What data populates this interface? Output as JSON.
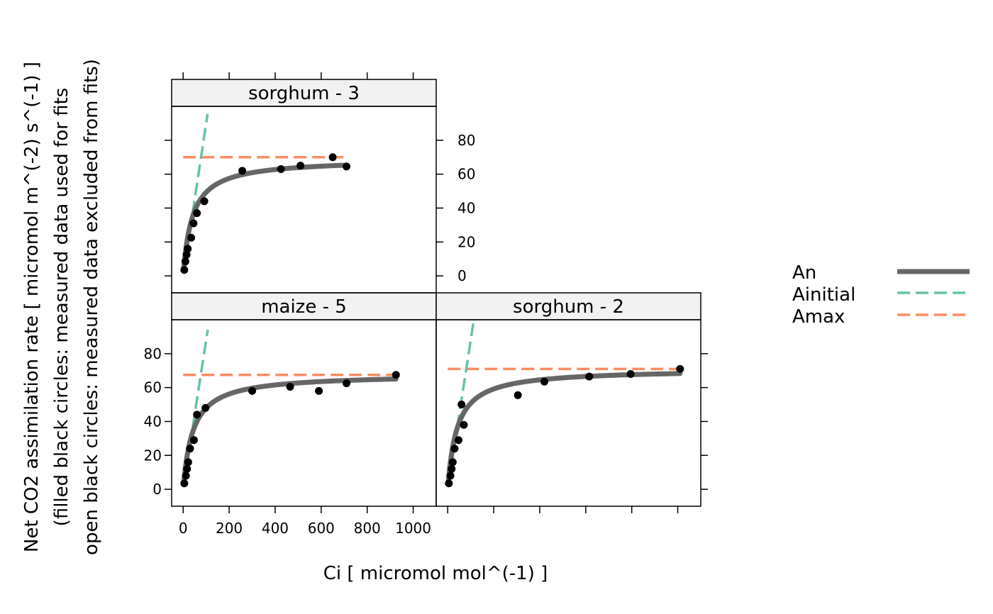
{
  "chart_data": {
    "type": "scatter",
    "xlabel": "Ci [ micromol mol^(-1) ]",
    "ylabel_lines": [
      "Net CO2 assimilation rate [ micromol m^(-2) s^(-1) ]",
      "(filled black circles: measured data used for fits",
      "open black circles: measured data excluded from fits)"
    ],
    "xlim": [
      -50,
      1100
    ],
    "ylim": [
      -10,
      100
    ],
    "xticks": [
      0,
      200,
      400,
      600,
      800,
      1000
    ],
    "yticks": [
      0,
      20,
      40,
      60,
      80
    ],
    "legend": {
      "placement": "right",
      "entries": [
        {
          "label": "An",
          "color": "#666666",
          "style": "solid"
        },
        {
          "label": "Ainitial",
          "color": "#66c2a5",
          "style": "dashed"
        },
        {
          "label": "Amax",
          "color": "#fc8d62",
          "style": "dashed"
        }
      ]
    },
    "strip_fill": "#f2f2f2",
    "point_color": "#000000",
    "panels": [
      {
        "id": "maize-5",
        "title": "maize - 5",
        "row": 0,
        "col": 0,
        "points": [
          [
            5,
            3.5
          ],
          [
            12,
            8
          ],
          [
            17,
            12
          ],
          [
            22,
            16
          ],
          [
            30,
            24
          ],
          [
            47,
            29
          ],
          [
            60,
            44
          ],
          [
            97,
            48
          ],
          [
            300,
            58
          ],
          [
            465,
            60.5
          ],
          [
            590,
            58
          ],
          [
            710,
            62.5
          ],
          [
            925,
            67.5
          ]
        ],
        "An": {
          "amax": 68,
          "ci50": 42,
          "xmax": 925
        },
        "Ainitial": {
          "slope": 0.88,
          "x0": 5,
          "x1": 107
        },
        "Amax": {
          "value": 67.5,
          "x0": 0,
          "x1": 930
        }
      },
      {
        "id": "sorghum-2",
        "title": "sorghum - 2",
        "row": 0,
        "col": 1,
        "points": [
          [
            5,
            3.5
          ],
          [
            12,
            8
          ],
          [
            17,
            12
          ],
          [
            22,
            16
          ],
          [
            30,
            24
          ],
          [
            47,
            29
          ],
          [
            60,
            50
          ],
          [
            70,
            38
          ],
          [
            305,
            55.5
          ],
          [
            420,
            63.5
          ],
          [
            615,
            66.5
          ],
          [
            795,
            68
          ],
          [
            1010,
            71
          ]
        ],
        "An": {
          "amax": 71,
          "ci50": 40,
          "xmax": 1010
        },
        "Ainitial": {
          "slope": 0.88,
          "x0": 5,
          "x1": 114
        },
        "Amax": {
          "value": 71,
          "x0": 0,
          "x1": 1010
        }
      },
      {
        "id": "sorghum-3",
        "title": "sorghum - 3",
        "row": 1,
        "col": 0,
        "points": [
          [
            5,
            3.5
          ],
          [
            10,
            8.5
          ],
          [
            15,
            12.5
          ],
          [
            20,
            16
          ],
          [
            35,
            22.5
          ],
          [
            45,
            31
          ],
          [
            60,
            37
          ],
          [
            92,
            44
          ],
          [
            257,
            62
          ],
          [
            425,
            63
          ],
          [
            510,
            65
          ],
          [
            650,
            70
          ],
          [
            710,
            64.5
          ]
        ],
        "An": {
          "amax": 69,
          "ci50": 40,
          "xmax": 710
        },
        "Ainitial": {
          "slope": 0.9,
          "x0": 5,
          "x1": 106
        },
        "Amax": {
          "value": 70,
          "x0": 0,
          "x1": 710
        }
      }
    ]
  }
}
